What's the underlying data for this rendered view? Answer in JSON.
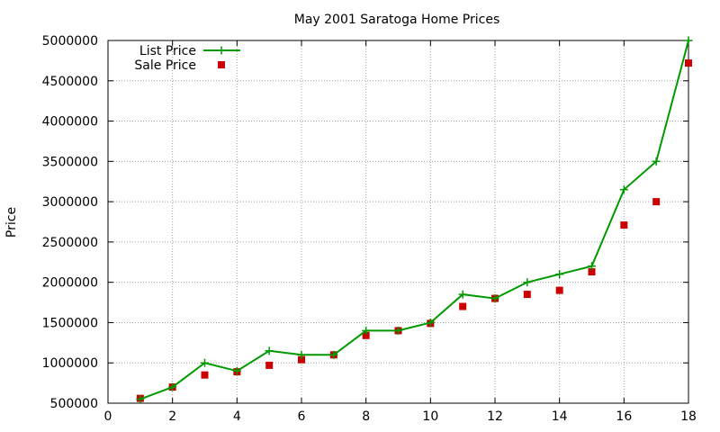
{
  "chart_data": {
    "type": "line",
    "title": "May 2001 Saratoga Home Prices",
    "xlabel": "",
    "ylabel": "Price",
    "xlim": [
      0,
      18
    ],
    "ylim": [
      500000,
      5000000
    ],
    "xticks": [
      "0",
      "2",
      "4",
      "6",
      "8",
      "10",
      "12",
      "14",
      "16",
      "18"
    ],
    "yticks": [
      "500000",
      "1000000",
      "1500000",
      "2000000",
      "2500000",
      "3000000",
      "3500000",
      "4000000",
      "4500000",
      "5000000"
    ],
    "grid": true,
    "legend_position": "top-left",
    "series": [
      {
        "name": "List Price",
        "style": "line-plus",
        "color": "#009900",
        "x": [
          1,
          2,
          3,
          4,
          5,
          6,
          7,
          8,
          9,
          10,
          11,
          12,
          13,
          14,
          15,
          16,
          17,
          18
        ],
        "values": [
          550000,
          700000,
          1000000,
          900000,
          1150000,
          1100000,
          1100000,
          1400000,
          1400000,
          1500000,
          1850000,
          1800000,
          2000000,
          2100000,
          2200000,
          3150000,
          3500000,
          5000000
        ]
      },
      {
        "name": "Sale Price",
        "style": "square",
        "color": "#cc0000",
        "x": [
          1,
          2,
          3,
          4,
          5,
          6,
          7,
          8,
          9,
          10,
          11,
          12,
          13,
          14,
          15,
          16,
          17,
          18
        ],
        "values": [
          560000,
          700000,
          850000,
          890000,
          970000,
          1040000,
          1100000,
          1340000,
          1400000,
          1490000,
          1700000,
          1800000,
          1850000,
          1900000,
          2130000,
          2710000,
          3000000,
          4720000
        ]
      }
    ]
  }
}
